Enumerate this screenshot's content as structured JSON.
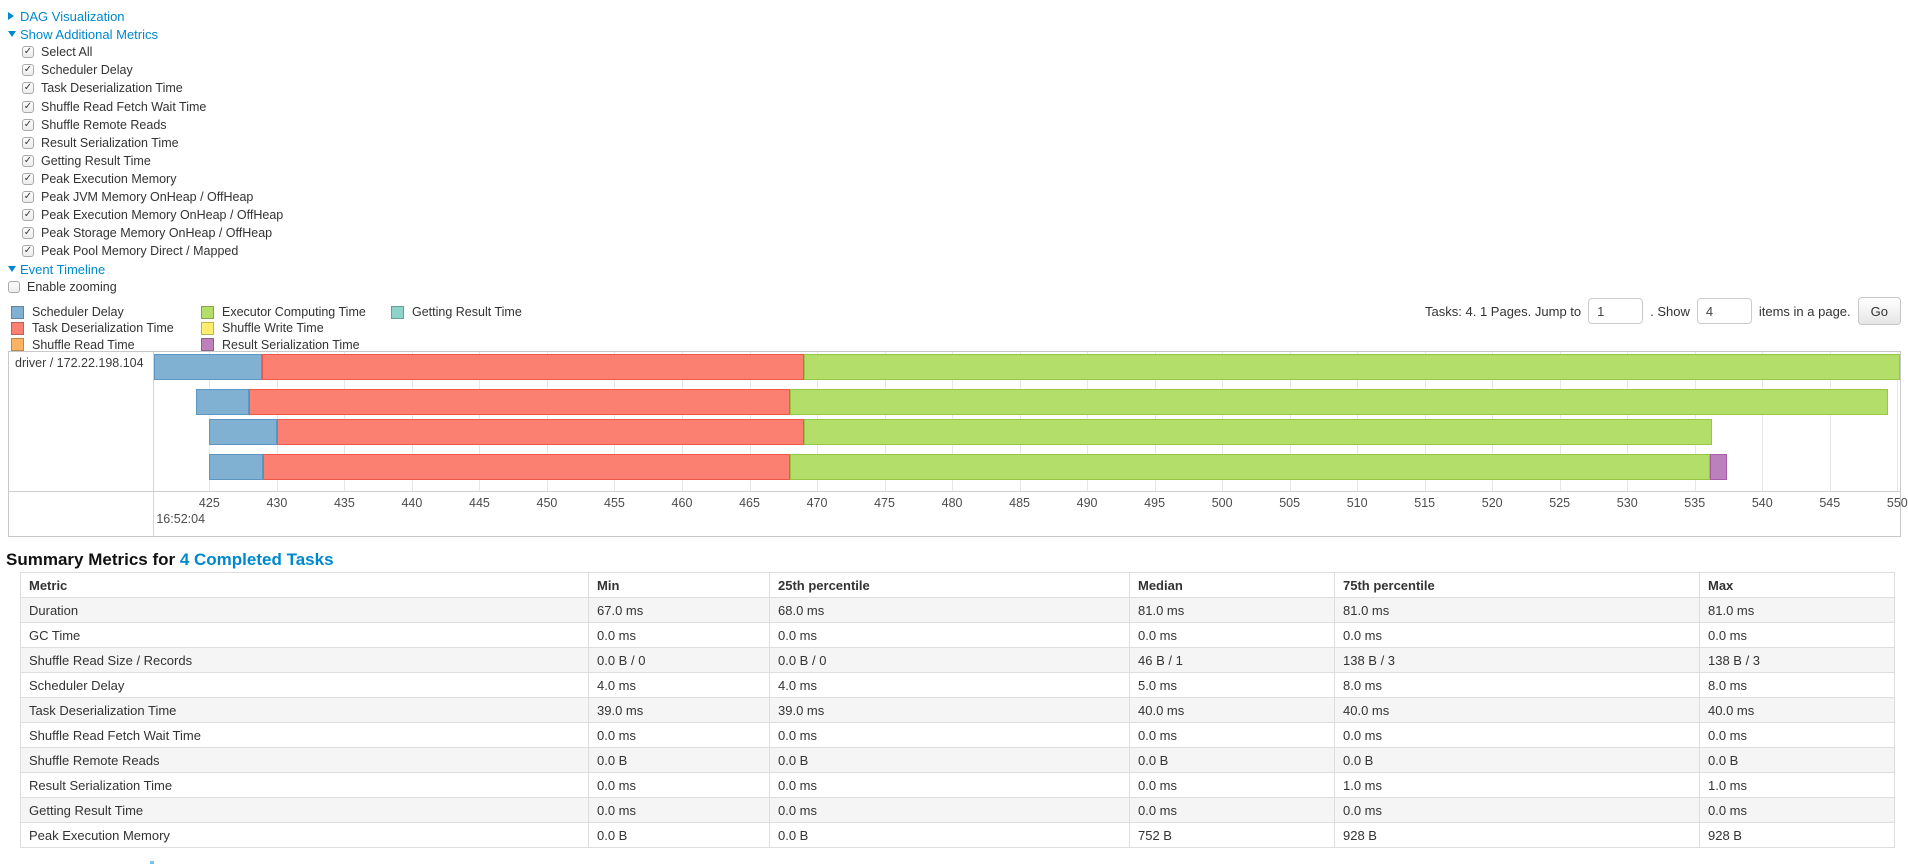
{
  "page": {
    "sections": {
      "dag": "DAG Visualization",
      "additional_metrics": "Show Additional Metrics",
      "event_timeline": "Event Timeline"
    },
    "enable_zooming_label": "Enable zooming",
    "metric_checkboxes": [
      "Select All",
      "Scheduler Delay",
      "Task Deserialization Time",
      "Shuffle Read Fetch Wait Time",
      "Shuffle Remote Reads",
      "Result Serialization Time",
      "Getting Result Time",
      "Peak Execution Memory",
      "Peak JVM Memory OnHeap / OffHeap",
      "Peak Execution Memory OnHeap / OffHeap",
      "Peak Storage Memory OnHeap / OffHeap",
      "Peak Pool Memory Direct / Mapped"
    ]
  },
  "legend": {
    "columns": [
      [
        {
          "label": "Scheduler Delay",
          "color": "#80B1D3"
        },
        {
          "label": "Task Deserialization Time",
          "color": "#FB8072"
        },
        {
          "label": "Shuffle Read Time",
          "color": "#FDB462"
        }
      ],
      [
        {
          "label": "Executor Computing Time",
          "color": "#B3DE69"
        },
        {
          "label": "Shuffle Write Time",
          "color": "#FFED6F"
        },
        {
          "label": "Result Serialization Time",
          "color": "#BC80BD"
        }
      ],
      [
        {
          "label": "Getting Result Time",
          "color": "#8DD3C7"
        }
      ]
    ]
  },
  "pager": {
    "prefix": "Tasks: 4. 1 Pages. Jump to",
    "jump_value": "1",
    "mid": ". Show",
    "show_value": "4",
    "suffix": "items in a page.",
    "go_label": "Go"
  },
  "chart_data": {
    "type": "timeline",
    "executor_label": "driver / 172.22.198.104",
    "x_axis": {
      "min": 420.9,
      "max": 550.2,
      "tick_start": 425,
      "tick_end": 550,
      "tick_step": 5,
      "start_time_label": "16:52:04"
    },
    "colors": {
      "scheduler_delay": "#80B1D3",
      "task_deserialization": "#FB8072",
      "shuffle_read": "#FDB462",
      "executor_computing": "#B3DE69",
      "shuffle_write": "#FFED6F",
      "result_serialization": "#BC80BD",
      "getting_result": "#8DD3C7"
    },
    "tasks": [
      {
        "segments": [
          [
            "scheduler_delay",
            420.9,
            428.9
          ],
          [
            "task_deserialization",
            428.9,
            469.0
          ],
          [
            "executor_computing",
            469.0,
            550.2
          ]
        ]
      },
      {
        "segments": [
          [
            "scheduler_delay",
            424.0,
            427.9
          ],
          [
            "task_deserialization",
            427.9,
            468.0
          ],
          [
            "executor_computing",
            468.0,
            549.3
          ]
        ]
      },
      {
        "segments": [
          [
            "scheduler_delay",
            425.0,
            430.0
          ],
          [
            "task_deserialization",
            430.0,
            469.0
          ],
          [
            "executor_computing",
            469.0,
            536.3
          ]
        ]
      },
      {
        "segments": [
          [
            "scheduler_delay",
            425.0,
            429.0
          ],
          [
            "task_deserialization",
            429.0,
            468.0
          ],
          [
            "executor_computing",
            468.0,
            536.1
          ],
          [
            "result_serialization",
            536.1,
            537.4
          ]
        ]
      }
    ]
  },
  "summary": {
    "title_prefix": "Summary Metrics for ",
    "title_link": "4 Completed Tasks",
    "table": {
      "headers": [
        "Metric",
        "Min",
        "25th percentile",
        "Median",
        "75th percentile",
        "Max"
      ],
      "rows": [
        [
          "Duration",
          "67.0 ms",
          "68.0 ms",
          "81.0 ms",
          "81.0 ms",
          "81.0 ms"
        ],
        [
          "GC Time",
          "0.0 ms",
          "0.0 ms",
          "0.0 ms",
          "0.0 ms",
          "0.0 ms"
        ],
        [
          "Shuffle Read Size / Records",
          "0.0 B / 0",
          "0.0 B / 0",
          "46 B / 1",
          "138 B / 3",
          "138 B / 3"
        ],
        [
          "Scheduler Delay",
          "4.0 ms",
          "4.0 ms",
          "5.0 ms",
          "8.0 ms",
          "8.0 ms"
        ],
        [
          "Task Deserialization Time",
          "39.0 ms",
          "39.0 ms",
          "40.0 ms",
          "40.0 ms",
          "40.0 ms"
        ],
        [
          "Shuffle Read Fetch Wait Time",
          "0.0 ms",
          "0.0 ms",
          "0.0 ms",
          "0.0 ms",
          "0.0 ms"
        ],
        [
          "Shuffle Remote Reads",
          "0.0 B",
          "0.0 B",
          "0.0 B",
          "0.0 B",
          "0.0 B"
        ],
        [
          "Result Serialization Time",
          "0.0 ms",
          "0.0 ms",
          "0.0 ms",
          "1.0 ms",
          "1.0 ms"
        ],
        [
          "Getting Result Time",
          "0.0 ms",
          "0.0 ms",
          "0.0 ms",
          "0.0 ms",
          "0.0 ms"
        ],
        [
          "Peak Execution Memory",
          "0.0 B",
          "0.0 B",
          "752 B",
          "928 B",
          "928 B"
        ]
      ]
    }
  },
  "ui_colors": {
    "link": "#0088cc"
  }
}
